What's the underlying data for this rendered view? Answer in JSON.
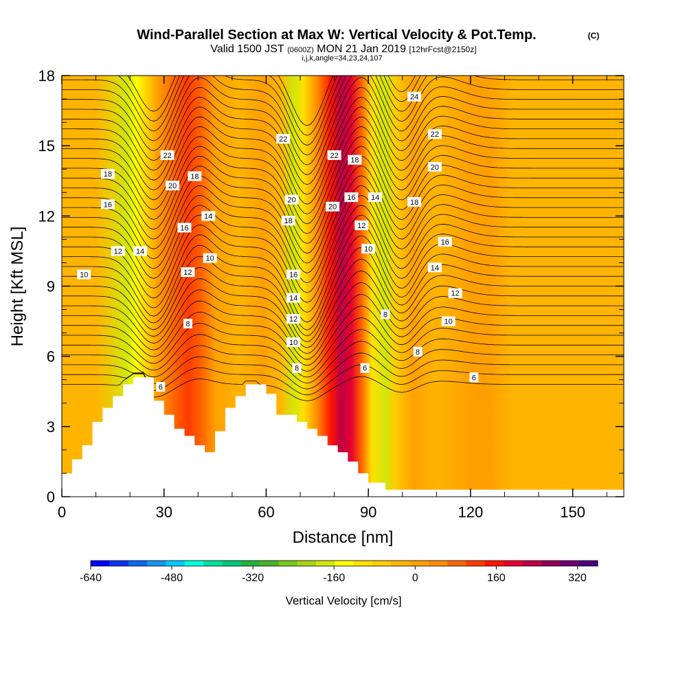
{
  "chart_data": {
    "type": "heatmap",
    "title": "Wind-Parallel Section at Max W: Vertical Velocity & Pot.Temp.",
    "title_suffix": "(C)",
    "subtitle_main": "Valid 1500 JST",
    "subtitle_z": "(0600Z)",
    "subtitle_date": "MON 21 Jan 2019",
    "subtitle_fcst": "[12hrFcst@2150z]",
    "subtitle2": "i,j,k,angle=34,23,24,107",
    "xlabel": "Distance [nm]",
    "ylabel": "Height [Kft MSL]",
    "xlim": [
      0,
      165
    ],
    "ylim": [
      0,
      18
    ],
    "x_ticks": [
      "0",
      "30",
      "60",
      "90",
      "120",
      "150"
    ],
    "y_ticks": [
      "0",
      "3",
      "6",
      "9",
      "12",
      "15",
      "18"
    ],
    "colorbar": {
      "label": "Vertical Velocity [cm/s]",
      "min": -640,
      "max": 360,
      "step": 40,
      "tick_values": [
        -640,
        -480,
        -320,
        -160,
        0,
        160,
        320
      ],
      "tick_labels": [
        "-640",
        "-480",
        "-320",
        "-160",
        "0",
        "160",
        "320"
      ],
      "colors": [
        "#0000ff",
        "#0a32f2",
        "#0f66f0",
        "#1594f0",
        "#00c8ff",
        "#00ffdc",
        "#00e0a0",
        "#00c878",
        "#22b43c",
        "#46b428",
        "#78c81e",
        "#aad214",
        "#d2e60a",
        "#ffff00",
        "#ffe000",
        "#ffcc00",
        "#ffb400",
        "#ffa000",
        "#ff8c00",
        "#ff6400",
        "#ff3c00",
        "#ff1400",
        "#e6002d",
        "#be0046",
        "#910059",
        "#6e0070",
        "#4b0082"
      ]
    },
    "velocity_columns": [
      {
        "x": 0,
        "w": 0
      },
      {
        "x": 10,
        "w": 20
      },
      {
        "x": 19,
        "w": -160
      },
      {
        "x": 22,
        "w": -120
      },
      {
        "x": 28,
        "w": 40
      },
      {
        "x": 33,
        "w": 140
      },
      {
        "x": 37,
        "w": 160
      },
      {
        "x": 41,
        "w": 120
      },
      {
        "x": 45,
        "w": 40
      },
      {
        "x": 52,
        "w": 0
      },
      {
        "x": 59,
        "w": 40
      },
      {
        "x": 64,
        "w": 0
      },
      {
        "x": 68,
        "w": -160
      },
      {
        "x": 71,
        "w": -60
      },
      {
        "x": 75,
        "w": 100
      },
      {
        "x": 79,
        "w": 200
      },
      {
        "x": 82,
        "w": 300
      },
      {
        "x": 85,
        "w": 240
      },
      {
        "x": 88,
        "w": 120
      },
      {
        "x": 91,
        "w": -60
      },
      {
        "x": 95,
        "w": -160
      },
      {
        "x": 98,
        "w": -40
      },
      {
        "x": 103,
        "w": 60
      },
      {
        "x": 110,
        "w": 20
      },
      {
        "x": 120,
        "w": 40
      },
      {
        "x": 126,
        "w": 60
      },
      {
        "x": 132,
        "w": 0
      },
      {
        "x": 140,
        "w": 20
      },
      {
        "x": 150,
        "w": 10
      },
      {
        "x": 165,
        "w": 0
      }
    ],
    "terrain_kft": [
      [
        0,
        1.0
      ],
      [
        3,
        1.6
      ],
      [
        6,
        2.2
      ],
      [
        9,
        3.2
      ],
      [
        12,
        3.8
      ],
      [
        15,
        4.3
      ],
      [
        18,
        4.8
      ],
      [
        21,
        5.1
      ],
      [
        24,
        5.1
      ],
      [
        27,
        4.1
      ],
      [
        30,
        3.5
      ],
      [
        33,
        2.9
      ],
      [
        36,
        2.6
      ],
      [
        39,
        2.2
      ],
      [
        42,
        1.9
      ],
      [
        45,
        2.8
      ],
      [
        48,
        3.8
      ],
      [
        51,
        4.3
      ],
      [
        54,
        4.8
      ],
      [
        57,
        4.8
      ],
      [
        60,
        4.4
      ],
      [
        63,
        3.5
      ],
      [
        66,
        3.5
      ],
      [
        69,
        3.2
      ],
      [
        72,
        2.9
      ],
      [
        75,
        2.6
      ],
      [
        78,
        2.2
      ],
      [
        81,
        1.9
      ],
      [
        84,
        1.5
      ],
      [
        87,
        1.0
      ],
      [
        90,
        0.6
      ],
      [
        93,
        0.6
      ],
      [
        95,
        0.3
      ],
      [
        165,
        0.3
      ]
    ],
    "isentrope_labels": [
      {
        "text": "10",
        "x": 6.5,
        "y": 9.5
      },
      {
        "text": "12",
        "x": 16.5,
        "y": 10.5
      },
      {
        "text": "14",
        "x": 23,
        "y": 10.5
      },
      {
        "text": "16",
        "x": 13.5,
        "y": 12.5
      },
      {
        "text": "18",
        "x": 13.5,
        "y": 13.8
      },
      {
        "text": "22",
        "x": 31,
        "y": 14.6
      },
      {
        "text": "20",
        "x": 32.5,
        "y": 13.3
      },
      {
        "text": "18",
        "x": 39,
        "y": 13.7
      },
      {
        "text": "16",
        "x": 36,
        "y": 11.5
      },
      {
        "text": "14",
        "x": 43,
        "y": 12.0
      },
      {
        "text": "12",
        "x": 37,
        "y": 9.6
      },
      {
        "text": "10",
        "x": 43.5,
        "y": 10.2
      },
      {
        "text": "8",
        "x": 37,
        "y": 7.4
      },
      {
        "text": "6",
        "x": 29,
        "y": 4.7
      },
      {
        "text": "22",
        "x": 65,
        "y": 15.3
      },
      {
        "text": "20",
        "x": 67.5,
        "y": 12.7
      },
      {
        "text": "18",
        "x": 66.5,
        "y": 11.8
      },
      {
        "text": "16",
        "x": 68,
        "y": 9.5
      },
      {
        "text": "14",
        "x": 68,
        "y": 8.5
      },
      {
        "text": "12",
        "x": 68,
        "y": 7.6
      },
      {
        "text": "10",
        "x": 68,
        "y": 6.6
      },
      {
        "text": "8",
        "x": 69,
        "y": 5.5
      },
      {
        "text": "22",
        "x": 80,
        "y": 14.6
      },
      {
        "text": "18",
        "x": 86,
        "y": 14.4
      },
      {
        "text": "20",
        "x": 79.5,
        "y": 12.4
      },
      {
        "text": "16",
        "x": 85,
        "y": 12.8
      },
      {
        "text": "14",
        "x": 92,
        "y": 12.8
      },
      {
        "text": "12",
        "x": 88,
        "y": 11.6
      },
      {
        "text": "10",
        "x": 90,
        "y": 10.6
      },
      {
        "text": "8",
        "x": 95,
        "y": 7.8
      },
      {
        "text": "6",
        "x": 89,
        "y": 5.5
      },
      {
        "text": "24",
        "x": 103.5,
        "y": 17.1
      },
      {
        "text": "22",
        "x": 109.5,
        "y": 15.5
      },
      {
        "text": "20",
        "x": 109.5,
        "y": 14.1
      },
      {
        "text": "18",
        "x": 103.5,
        "y": 12.6
      },
      {
        "text": "16",
        "x": 112.5,
        "y": 10.9
      },
      {
        "text": "14",
        "x": 109.5,
        "y": 9.8
      },
      {
        "text": "12",
        "x": 115.5,
        "y": 8.7
      },
      {
        "text": "10",
        "x": 113.5,
        "y": 7.5
      },
      {
        "text": "8",
        "x": 104.5,
        "y": 6.2
      },
      {
        "text": "6",
        "x": 121,
        "y": 5.1
      }
    ]
  }
}
